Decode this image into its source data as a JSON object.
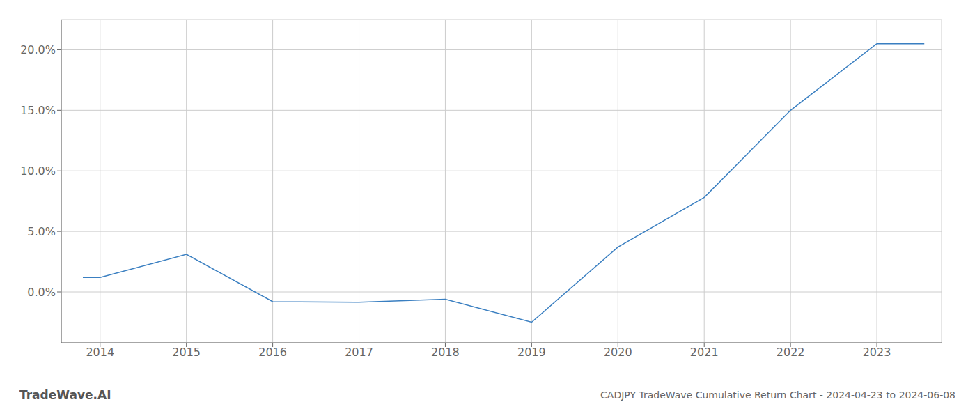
{
  "chart_data": {
    "type": "line",
    "title": "CADJPY TradeWave Cumulative Return Chart - 2024-04-23 to 2024-06-08",
    "annotations": [
      "TradeWave.AI"
    ],
    "x": [
      2013.8,
      2014.0,
      2015.0,
      2016.0,
      2017.0,
      2018.0,
      2019.0,
      2020.0,
      2021.0,
      2022.0,
      2023.0,
      2023.55
    ],
    "values": [
      1.2,
      1.2,
      3.1,
      -0.8,
      -0.85,
      -0.6,
      -2.5,
      3.7,
      7.8,
      15.0,
      20.5,
      20.5
    ],
    "color": "#3a7fc1",
    "xlim": [
      2013.55,
      2023.75
    ],
    "ylim": [
      -4.2,
      22.5
    ],
    "xticks": [
      2014,
      2015,
      2016,
      2017,
      2018,
      2019,
      2020,
      2021,
      2022,
      2023
    ],
    "yticks": [
      {
        "value": 0.0,
        "label": "0.0%"
      },
      {
        "value": 5.0,
        "label": "5.0%"
      },
      {
        "value": 10.0,
        "label": "10.0%"
      },
      {
        "value": 15.0,
        "label": "15.0%"
      },
      {
        "value": 20.0,
        "label": "20.0%"
      }
    ],
    "grid": true
  }
}
